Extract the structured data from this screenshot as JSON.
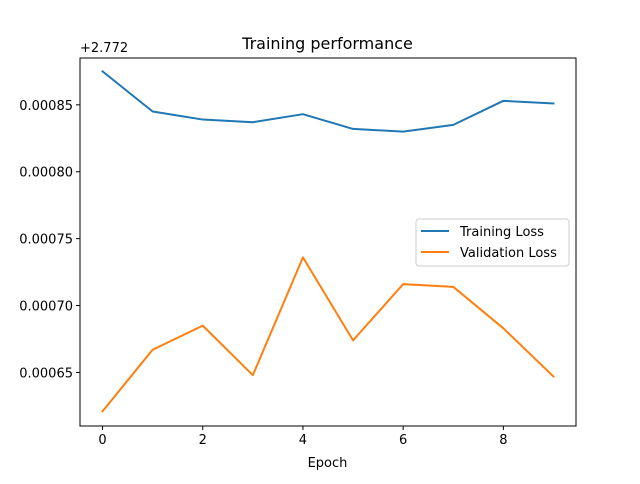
{
  "chart_data": {
    "type": "line",
    "title": "Training performance",
    "xlabel": "Epoch",
    "ylabel": "",
    "y_offset_label": "+2.772",
    "x": [
      0,
      1,
      2,
      3,
      4,
      5,
      6,
      7,
      8,
      9
    ],
    "xlim": [
      -0.45,
      9.45
    ],
    "ylim": [
      0.00061,
      0.000885
    ],
    "xticks": [
      0,
      2,
      4,
      6,
      8
    ],
    "yticks": [
      0.00065,
      0.0007,
      0.00075,
      0.0008,
      0.00085
    ],
    "xtick_labels": [
      "0",
      "2",
      "4",
      "6",
      "8"
    ],
    "ytick_labels": [
      "0.00065",
      "0.00070",
      "0.00075",
      "0.00080",
      "0.00085"
    ],
    "grid": false,
    "legend_position": "center-right",
    "series": [
      {
        "name": "Training Loss",
        "color": "#1f77b4",
        "values": [
          0.000875,
          0.000845,
          0.000839,
          0.000837,
          0.000843,
          0.000832,
          0.00083,
          0.000835,
          0.000853,
          0.000851
        ]
      },
      {
        "name": "Validation Loss",
        "color": "#ff7f0e",
        "values": [
          0.000621,
          0.000667,
          0.000685,
          0.000648,
          0.000736,
          0.000674,
          0.000716,
          0.000714,
          0.000683,
          0.000647
        ]
      }
    ]
  }
}
